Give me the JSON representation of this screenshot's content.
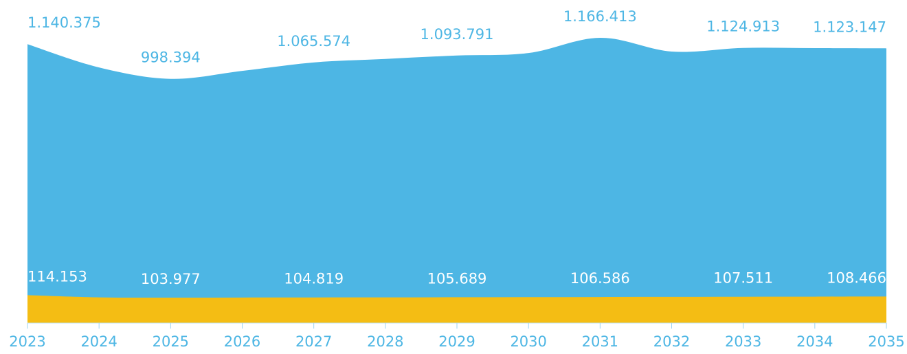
{
  "chart_data": {
    "type": "area",
    "categories": [
      "2023",
      "2024",
      "2025",
      "2026",
      "2027",
      "2028",
      "2029",
      "2030",
      "2031",
      "2032",
      "2033",
      "2034",
      "2035"
    ],
    "ylim": [
      0,
      1200000
    ],
    "series": [
      {
        "color": "#4db6e4",
        "values": [
          1140375,
          1045000,
          998394,
          1031000,
          1065574,
          1080000,
          1093791,
          1104000,
          1166413,
          1110000,
          1124913,
          1124000,
          1123147
        ],
        "value_labels": [
          "1.140.375",
          null,
          "998.394",
          null,
          "1.065.574",
          null,
          "1.093.791",
          null,
          "1.166.413",
          null,
          "1.124.913",
          null,
          "1.123.147"
        ]
      },
      {
        "color": "#f4bd14",
        "values": [
          114153,
          105000,
          103977,
          104400,
          104819,
          105200,
          105689,
          106100,
          106586,
          107000,
          107511,
          108000,
          108466
        ],
        "value_labels": [
          "114.153",
          null,
          "103.977",
          null,
          "104.819",
          null,
          "105.689",
          null,
          "106.586",
          null,
          "107.511",
          null,
          "108.466"
        ]
      }
    ]
  }
}
